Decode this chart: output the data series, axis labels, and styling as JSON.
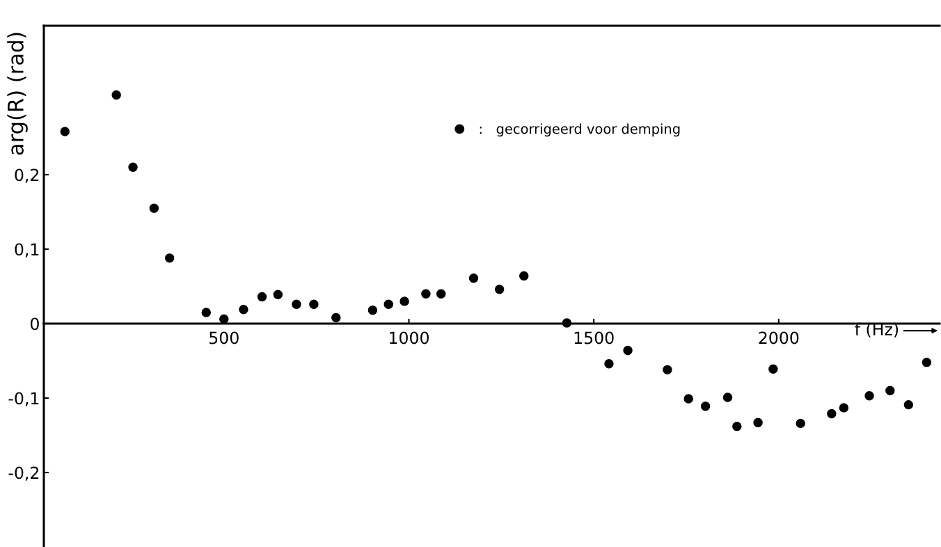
{
  "chart_data": {
    "type": "scatter",
    "xlabel": "f (Hz)",
    "ylabel": "arg(R) (rad)",
    "x": [
      70,
      209,
      254,
      311,
      353,
      452,
      500,
      553,
      603,
      646,
      696,
      743,
      803,
      902,
      945,
      988,
      1046,
      1087,
      1175,
      1245,
      1311,
      1427,
      1541,
      1592,
      1699,
      1756,
      1802,
      1862,
      1887,
      1944,
      1985,
      2059,
      2143,
      2176,
      2245,
      2301,
      2351,
      2400
    ],
    "series": [
      {
        "name": ":   gecorrigeerd voor demping",
        "color": "#000000",
        "values": [
          0.258,
          0.307,
          0.21,
          0.155,
          0.088,
          0.015,
          0.006,
          0.019,
          0.036,
          0.039,
          0.026,
          0.026,
          0.008,
          0.018,
          0.026,
          0.03,
          0.04,
          0.04,
          0.061,
          0.046,
          0.064,
          0.001,
          -0.054,
          -0.036,
          -0.062,
          -0.101,
          -0.111,
          -0.099,
          -0.138,
          -0.133,
          -0.061,
          -0.134,
          -0.121,
          -0.113,
          -0.097,
          -0.09,
          -0.109,
          -0.052
        ]
      }
    ],
    "xlim": [
      13,
      2435
    ],
    "ylim": [
      -0.3,
      0.4
    ],
    "xticks": [
      500,
      1000,
      1500,
      2000
    ],
    "yticks": [
      {
        "value": -0.2,
        "label": "-0,2"
      },
      {
        "value": -0.1,
        "label": "-0,1"
      },
      {
        "value": 0,
        "label": "0"
      },
      {
        "value": 0.1,
        "label": "0,1"
      },
      {
        "value": 0.2,
        "label": "0,2"
      }
    ],
    "marker": "circle",
    "legend": "top",
    "grid": false
  }
}
